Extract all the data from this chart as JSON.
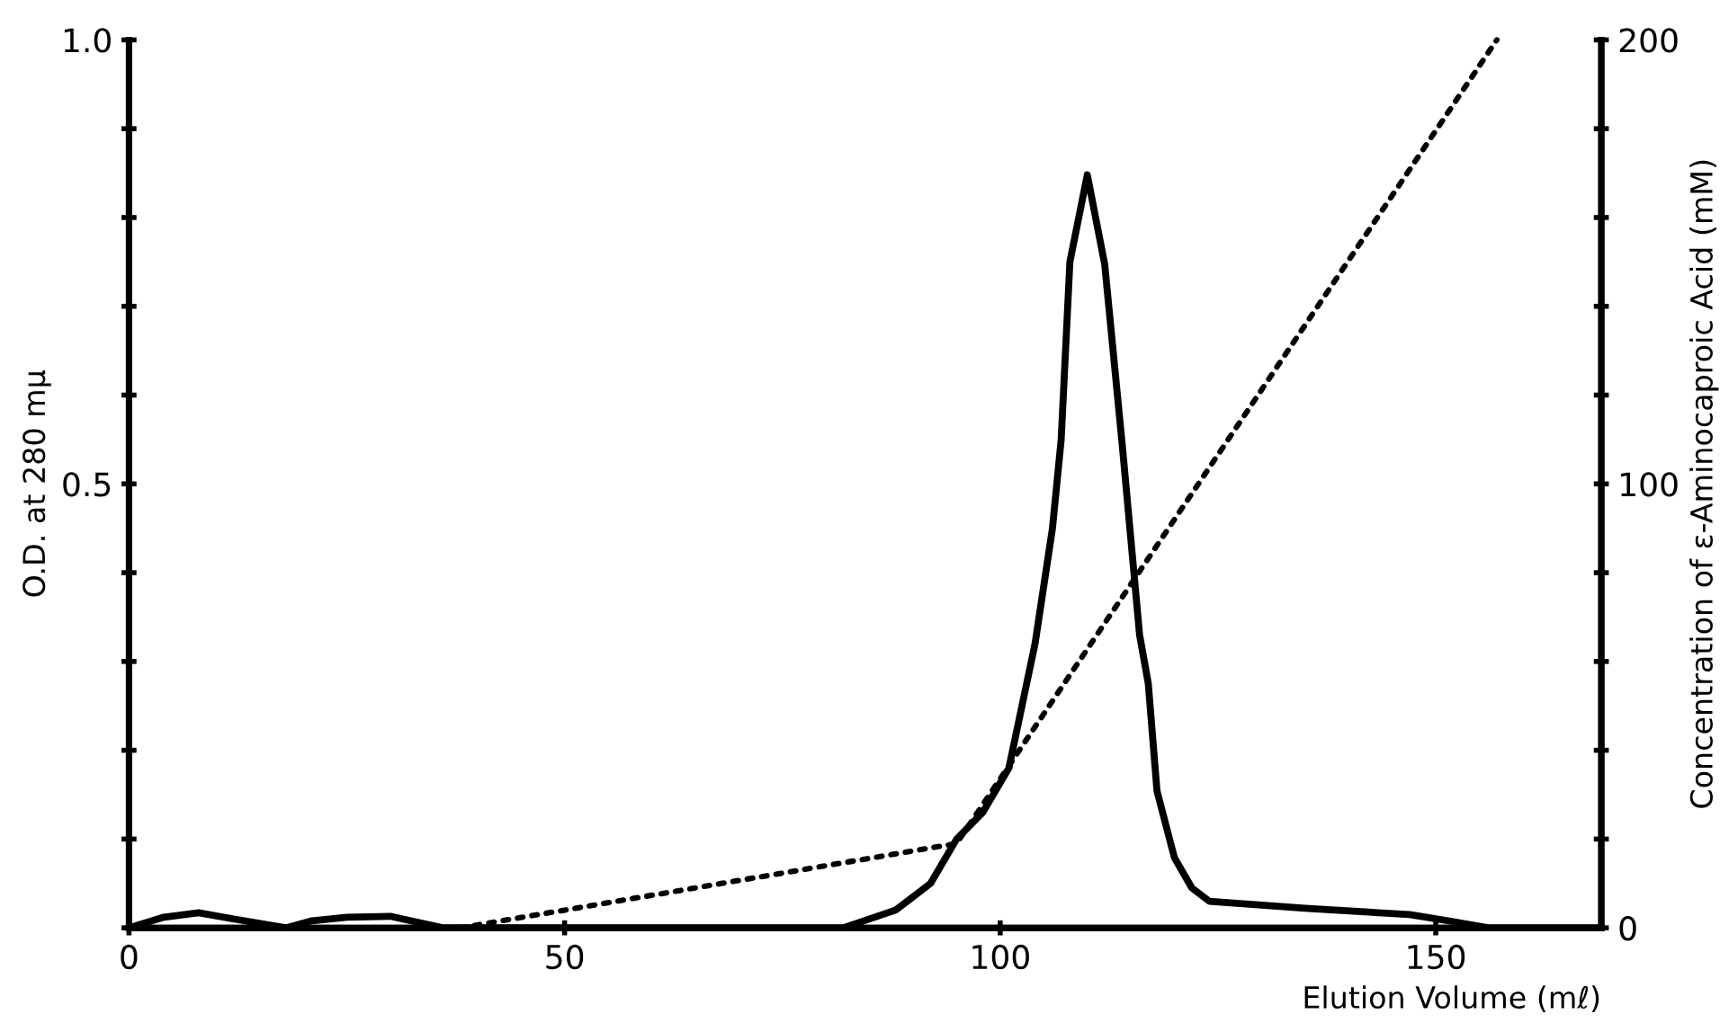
{
  "chart_data": {
    "type": "line",
    "xlabel": "Elution Volume (mℓ)",
    "ylabel": "O.D. at 280 mμ",
    "y2label": "Concentration of ε-Aminocaproic Acid (mM)",
    "xlim": [
      0,
      169
    ],
    "xticks": [
      0,
      50,
      100,
      150
    ],
    "ylim": [
      0,
      1.0
    ],
    "yticks": [
      {
        "value": 0,
        "label": null
      },
      {
        "value": 0.1,
        "label": null
      },
      {
        "value": 0.2,
        "label": null
      },
      {
        "value": 0.3,
        "label": null
      },
      {
        "value": 0.4,
        "label": null
      },
      {
        "value": 0.5,
        "label": "0.5"
      },
      {
        "value": 0.6,
        "label": null
      },
      {
        "value": 0.7,
        "label": null
      },
      {
        "value": 0.8,
        "label": null
      },
      {
        "value": 0.9,
        "label": null
      },
      {
        "value": 1.0,
        "label": "1.0"
      }
    ],
    "y2lim": [
      0,
      200
    ],
    "y2ticks": [
      0,
      {
        "value": 20,
        "label": null
      },
      {
        "value": 40,
        "label": null
      },
      {
        "value": 60,
        "label": null
      },
      {
        "value": 80,
        "label": null
      },
      100,
      {
        "value": 120,
        "label": null
      },
      {
        "value": 140,
        "label": null
      },
      {
        "value": 160,
        "label": null
      },
      {
        "value": 180,
        "label": null
      },
      200
    ],
    "grid": false,
    "legend": false,
    "series": [
      {
        "color": "#000000",
        "line_style": "solid",
        "x": [
          0,
          4,
          8,
          12,
          18,
          21,
          25,
          30,
          36,
          82,
          88,
          92,
          95,
          98,
          101,
          104,
          106,
          107,
          108,
          110,
          112,
          114,
          116,
          117,
          118,
          120,
          122,
          124,
          135,
          147,
          152,
          156,
          169
        ],
        "values": [
          0,
          0.012,
          0.017,
          0.01,
          0,
          0.008,
          0.012,
          0.013,
          0,
          0,
          0.02,
          0.05,
          0.1,
          0.13,
          0.18,
          0.32,
          0.45,
          0.55,
          0.75,
          0.848,
          0.747,
          0.545,
          0.33,
          0.275,
          0.154,
          0.079,
          0.045,
          0.03,
          0.022,
          0.015,
          0.007,
          0,
          0
        ]
      },
      {
        "color": "#000000",
        "line_style": "dotted",
        "axis": "y2",
        "x": [
          38,
          95,
          157
        ],
        "values": [
          0,
          19,
          200
        ]
      }
    ]
  }
}
